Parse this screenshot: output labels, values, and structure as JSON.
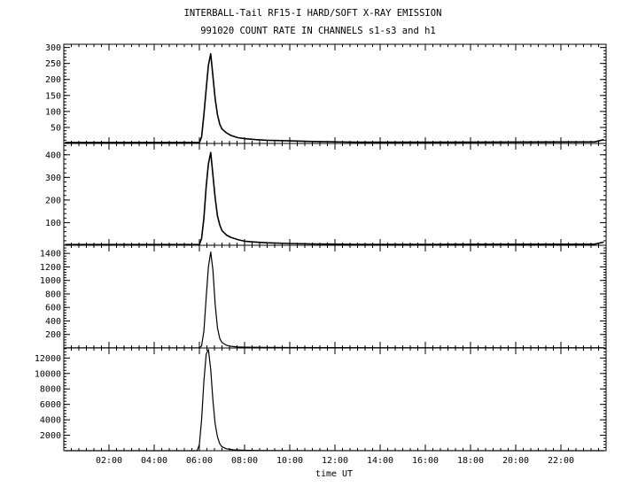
{
  "title_line1": "INTERBALL-Tail RF15-I HARD/SOFT X-RAY EMISSION",
  "title_line2": "991020  COUNT RATE IN CHANNELS s1-s3 and h1",
  "chart_data": {
    "type": "line",
    "title": "INTERBALL-Tail RF15-I HARD/SOFT X-RAY EMISSION",
    "subtitle": "991020  COUNT RATE IN CHANNELS s1-s3 and h1",
    "xlabel": "time UT",
    "xlim": [
      0,
      24
    ],
    "x_ticks": [
      "02:00",
      "04:00",
      "06:00",
      "08:00",
      "10:00",
      "12:00",
      "14:00",
      "16:00",
      "18:00",
      "20:00",
      "22:00"
    ],
    "x_tick_values": [
      2,
      4,
      6,
      8,
      10,
      12,
      14,
      16,
      18,
      20,
      22
    ],
    "grid": false,
    "panels": [
      {
        "ylim": [
          0,
          310
        ],
        "y_ticks": [
          "50",
          "100",
          "150",
          "200",
          "250",
          "300"
        ],
        "y_tick_values": [
          50,
          100,
          150,
          200,
          250,
          300
        ],
        "x": [
          0.05,
          6.0,
          6.1,
          6.2,
          6.3,
          6.4,
          6.5,
          6.6,
          6.7,
          6.8,
          6.9,
          7.0,
          7.2,
          7.4,
          7.7,
          8.0,
          8.5,
          9.0,
          10.0,
          11.0,
          12.0,
          12.9,
          14.0,
          14.5,
          16.5,
          23.5,
          23.9
        ],
        "y": [
          3,
          3,
          20,
          90,
          170,
          245,
          280,
          210,
          140,
          90,
          60,
          45,
          33,
          25,
          18,
          15,
          12,
          10,
          8,
          6,
          5,
          4,
          4,
          4,
          4,
          5,
          12
        ]
      },
      {
        "ylim": [
          0,
          450
        ],
        "y_ticks": [
          "100",
          "200",
          "300",
          "400"
        ],
        "y_tick_values": [
          100,
          200,
          300,
          400
        ],
        "x": [
          0.05,
          6.0,
          6.1,
          6.2,
          6.3,
          6.4,
          6.5,
          6.6,
          6.7,
          6.8,
          6.9,
          7.0,
          7.2,
          7.4,
          7.7,
          8.0,
          8.5,
          9.0,
          10.0,
          11.0,
          12.0,
          12.9,
          14.0,
          14.5,
          16.5,
          23.5,
          23.9
        ],
        "y": [
          3,
          3,
          30,
          120,
          260,
          360,
          410,
          310,
          210,
          130,
          90,
          65,
          45,
          35,
          25,
          18,
          14,
          11,
          8,
          6,
          5,
          4,
          4,
          4,
          4,
          5,
          14
        ]
      },
      {
        "ylim": [
          0,
          1520
        ],
        "y_ticks": [
          "200",
          "400",
          "600",
          "800",
          "1000",
          "1200",
          "1400"
        ],
        "y_tick_values": [
          200,
          400,
          600,
          800,
          1000,
          1200,
          1400
        ],
        "x": [
          0.05,
          6.0,
          6.1,
          6.2,
          6.3,
          6.4,
          6.5,
          6.6,
          6.7,
          6.8,
          6.9,
          7.0,
          7.2,
          7.4,
          7.7,
          8.0,
          8.5,
          9.0,
          10.0,
          12.0,
          14.0,
          23.9
        ],
        "y": [
          2,
          2,
          30,
          250,
          750,
          1200,
          1420,
          1150,
          650,
          300,
          140,
          80,
          40,
          25,
          15,
          12,
          10,
          8,
          6,
          5,
          4,
          4
        ]
      },
      {
        "ylim": [
          0,
          13300
        ],
        "y_ticks": [
          "2000",
          "4000",
          "6000",
          "8000",
          "10000",
          "12000"
        ],
        "y_tick_values": [
          2000,
          4000,
          6000,
          8000,
          10000,
          12000
        ],
        "x": [
          0.05,
          5.9,
          6.0,
          6.1,
          6.2,
          6.3,
          6.4,
          6.5,
          6.6,
          6.7,
          6.8,
          6.9,
          7.0,
          7.2,
          7.5,
          8.0,
          8.5,
          9.0,
          23.9
        ],
        "y": [
          0,
          0,
          800,
          4000,
          9000,
          12500,
          13100,
          10500,
          6500,
          3500,
          1800,
          900,
          500,
          250,
          120,
          60,
          30,
          10,
          0
        ]
      }
    ]
  }
}
